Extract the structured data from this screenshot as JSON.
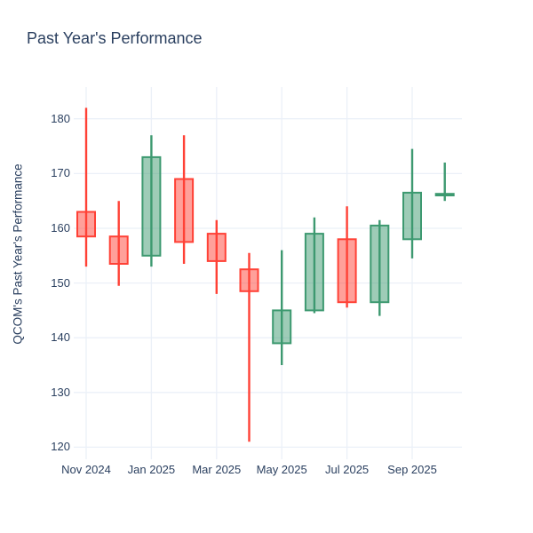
{
  "title": "Past Year's Performance",
  "chart_data": {
    "type": "candlestick",
    "title": "Past Year's Performance",
    "xlabel": "",
    "ylabel": "QCOM's Past Year's Performance",
    "x": [
      "Nov 2024",
      "Dec 2024",
      "Jan 2025",
      "Feb 2025",
      "Mar 2025",
      "Apr 2025",
      "May 2025",
      "Jun 2025",
      "Jul 2025",
      "Aug 2025",
      "Sep 2025",
      "Oct 2025"
    ],
    "series": [
      {
        "name": "QCOM",
        "open": [
          163,
          158.5,
          155,
          169,
          159,
          152.5,
          139,
          145,
          158,
          146.5,
          158,
          166
        ],
        "high": [
          182,
          165,
          177,
          177,
          161.5,
          155.5,
          156,
          162,
          164,
          161.5,
          174.5,
          172
        ],
        "low": [
          153,
          149.5,
          153,
          153.5,
          148,
          121,
          135,
          144.5,
          145.5,
          144,
          154.5,
          165
        ],
        "close": [
          158.5,
          153.5,
          173,
          157.5,
          154,
          148.5,
          145,
          159,
          146.5,
          160.5,
          166.5,
          166.3
        ]
      }
    ],
    "xtick_indices": [
      0,
      2,
      4,
      6,
      8,
      10
    ],
    "xtick_labels": [
      "Nov 2024",
      "Jan 2025",
      "Mar 2025",
      "May 2025",
      "Jul 2025",
      "Sep 2025"
    ],
    "yticks": [
      120,
      130,
      140,
      150,
      160,
      170,
      180
    ],
    "ylim": [
      117.8,
      185.8
    ],
    "grid": true,
    "legend": "none",
    "colors": {
      "increasing_line": "#3D9970",
      "increasing_fill": "rgba(61,153,112,0.5)",
      "decreasing_line": "#FF4136",
      "decreasing_fill": "rgba(255,65,54,0.5)",
      "grid": "#EBF0F8",
      "text": "#2a3f5f",
      "background": "#ffffff"
    }
  }
}
